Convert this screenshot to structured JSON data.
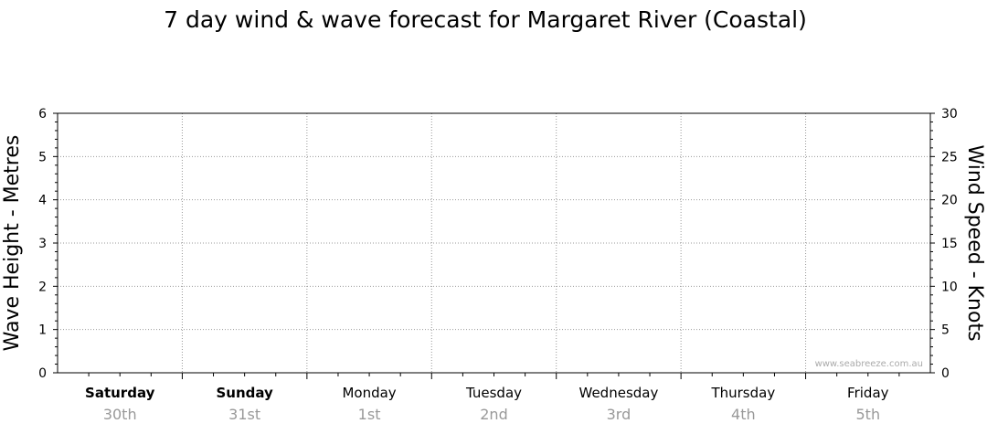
{
  "chart_data": {
    "type": "line",
    "title": "7 day wind & wave forecast for Margaret River (Coastal)",
    "y_left": {
      "label": "Wave Height - Metres",
      "range": [
        0,
        6
      ],
      "ticks": [
        "0",
        "1",
        "2",
        "3",
        "4",
        "5",
        "6"
      ]
    },
    "y_right": {
      "label": "Wind Speed - Knots",
      "range": [
        0,
        30
      ],
      "ticks": [
        "0",
        "5",
        "10",
        "15",
        "20",
        "25",
        "30"
      ]
    },
    "days": [
      {
        "name": "Saturday",
        "date": "30th",
        "bold": true
      },
      {
        "name": "Sunday",
        "date": "31st",
        "bold": true
      },
      {
        "name": "Monday",
        "date": "1st",
        "bold": false
      },
      {
        "name": "Tuesday",
        "date": "2nd",
        "bold": false
      },
      {
        "name": "Wednesday",
        "date": "3rd",
        "bold": false
      },
      {
        "name": "Thursday",
        "date": "4th",
        "bold": false
      },
      {
        "name": "Friday",
        "date": "5th",
        "bold": false
      }
    ],
    "series": [],
    "grid": true,
    "watermark": "www.seabreeze.com.au"
  }
}
